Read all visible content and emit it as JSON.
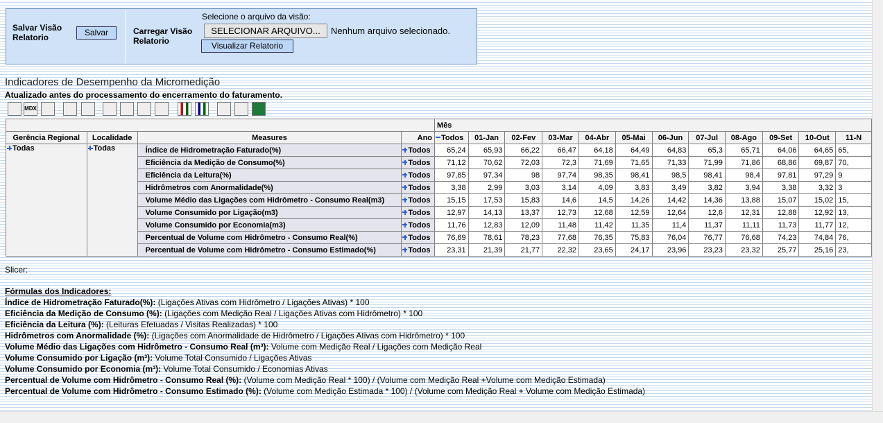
{
  "form": {
    "save_label": "Salvar Visão Relatorio",
    "save_button": "Salvar",
    "load_label": "Carregar Visão Relatorio",
    "select_prompt": "Selecione o arquivo da visão:",
    "file_button": "SELECIONAR ARQUIVO...",
    "file_status": "Nenhum arquivo selecionado.",
    "view_button": "Visualizar Relatorio"
  },
  "report": {
    "title": "Indicadores de Desempenho da Micromedição",
    "subtitle": "Atualizado antes do processamento do encerramento do faturamento.",
    "mdx_icon": "MDX"
  },
  "table": {
    "month_header": "Mês",
    "headers": [
      "Gerência Regional",
      "Localidade",
      "Measures",
      "Ano",
      "Todos",
      "01-Jan",
      "02-Fev",
      "03-Mar",
      "04-Abr",
      "05-Mai",
      "06-Jun",
      "07-Jul",
      "08-Ago",
      "09-Set",
      "10-Out",
      "11-N"
    ],
    "region": "Todas",
    "locality": "Todas",
    "rows": [
      {
        "measure": "Índice de Hidrometração Faturado(%)",
        "year": "Todos",
        "values": [
          "65,24",
          "65,93",
          "66,22",
          "66,47",
          "64,18",
          "64,49",
          "64,83",
          "65,3",
          "65,71",
          "64,06",
          "64,65",
          "65,"
        ]
      },
      {
        "measure": "Eficiência da Medição de Consumo(%)",
        "year": "Todos",
        "values": [
          "71,12",
          "70,62",
          "72,03",
          "72,3",
          "71,69",
          "71,65",
          "71,33",
          "71,99",
          "71,86",
          "68,86",
          "69,87",
          "70,"
        ]
      },
      {
        "measure": "Eficiência da Leitura(%)",
        "year": "Todos",
        "values": [
          "97,85",
          "97,34",
          "98",
          "97,74",
          "98,35",
          "98,41",
          "98,5",
          "98,41",
          "98,4",
          "97,81",
          "97,29",
          "9"
        ]
      },
      {
        "measure": "Hidrômetros com Anormalidade(%)",
        "year": "Todos",
        "values": [
          "3,38",
          "2,99",
          "3,03",
          "3,14",
          "4,09",
          "3,83",
          "3,49",
          "3,82",
          "3,94",
          "3,38",
          "3,32",
          "3"
        ]
      },
      {
        "measure": "Volume Médio das Ligações com Hidrômetro - Consumo Real(m3)",
        "year": "Todos",
        "values": [
          "15,15",
          "17,53",
          "15,83",
          "14,6",
          "14,5",
          "14,26",
          "14,42",
          "14,36",
          "13,88",
          "15,07",
          "15,02",
          "15,"
        ]
      },
      {
        "measure": "Volume Consumido por Ligação(m3)",
        "year": "Todos",
        "values": [
          "12,97",
          "14,13",
          "13,37",
          "12,73",
          "12,68",
          "12,59",
          "12,64",
          "12,6",
          "12,31",
          "12,88",
          "12,92",
          "13,"
        ]
      },
      {
        "measure": "Volume Consumido por Economia(m3)",
        "year": "Todos",
        "values": [
          "11,76",
          "12,83",
          "12,09",
          "11,48",
          "11,42",
          "11,35",
          "11,4",
          "11,37",
          "11,11",
          "11,73",
          "11,77",
          "12,"
        ]
      },
      {
        "measure": "Percentual de Volume com Hidrômetro - Consumo Real(%)",
        "year": "Todos",
        "values": [
          "76,69",
          "78,61",
          "78,23",
          "77,68",
          "76,35",
          "75,83",
          "76,04",
          "76,77",
          "76,68",
          "74,23",
          "74,84",
          "76,"
        ]
      },
      {
        "measure": "Percentual de Volume com Hidrômetro - Consumo Estimado(%)",
        "year": "Todos",
        "values": [
          "23,31",
          "21,39",
          "21,77",
          "22,32",
          "23,65",
          "24,17",
          "23,96",
          "23,23",
          "23,32",
          "25,77",
          "25,16",
          "23,"
        ]
      }
    ]
  },
  "slicer": "Slicer:",
  "formulas": {
    "heading": "Fórmulas dos Indicadores:",
    "items": [
      {
        "name": "Índice de Hidrometração Faturado(%):",
        "formula": "(Ligações Ativas com Hidrômetro / Ligações Ativas) * 100"
      },
      {
        "name": "Eficiência da Medição de Consumo (%):",
        "formula": "(Ligações com Medição Real / Ligações Ativas com Hidrômetro) * 100"
      },
      {
        "name": "Eficiência da Leitura (%):",
        "formula": "(Leituras Efetuadas / Visitas Realizadas) * 100"
      },
      {
        "name": "Hidrômetros com Anormalidade (%):",
        "formula": "(Ligações com Anormalidade de Hidrômetro / Ligações Ativas com Hidrômetro) * 100"
      },
      {
        "name": "Volume Médio das Ligações com Hidrômetro - Consumo Real (m³):",
        "formula": "Volume com Medição Real / Ligações com Medição Real"
      },
      {
        "name": "Volume Consumido por Ligação (m³):",
        "formula": "Volume Total Consumido / Ligações Ativas"
      },
      {
        "name": "Volume Consumido por Economia (m³):",
        "formula": "Volume Total Consumido / Economias Ativas"
      },
      {
        "name": "Percentual de Volume com Hidrômetro - Consumo Real (%):",
        "formula": "(Volume com Medição Real * 100) / (Volume com Medição Real +Volume com Medição Estimada)"
      },
      {
        "name": "Percentual de Volume com Hidrômetro - Consumo Estimado (%):",
        "formula": "(Volume com Medição Estimada * 100) / (Volume com Medição Real + Volume com Medição Estimada)"
      }
    ]
  }
}
